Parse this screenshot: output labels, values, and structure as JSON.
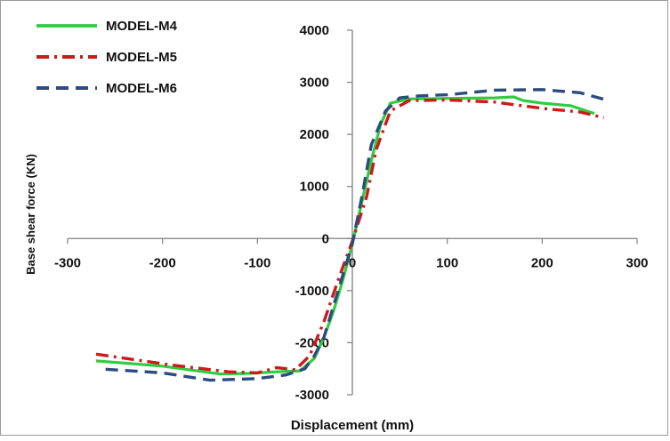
{
  "chart_data": {
    "type": "line",
    "title": "",
    "xlabel": "Displacement  (mm)",
    "ylabel": "Base shear force (KN)",
    "xlim": [
      -300,
      300
    ],
    "ylim": [
      -3000,
      4000
    ],
    "x_ticks": [
      -300,
      -200,
      -100,
      0,
      100,
      200,
      300
    ],
    "y_ticks": [
      -3000,
      -2000,
      -1000,
      0,
      1000,
      2000,
      3000,
      4000
    ],
    "x_tick_labels": [
      "-300",
      "-200",
      "-100",
      "0",
      "100",
      "200",
      "300"
    ],
    "y_tick_labels": [
      "-3000",
      "-2000",
      "-1000",
      "0",
      "1000",
      "2000",
      "3000",
      "4000"
    ],
    "grid": false,
    "legend_position": "top-left",
    "series": [
      {
        "name": "MODEL-M4",
        "color": "#2ecc40",
        "style": "solid",
        "x": [
          -270,
          -200,
          -140,
          -110,
          -80,
          -55,
          -40,
          -30,
          -20,
          -10,
          0,
          10,
          20,
          30,
          40,
          60,
          100,
          150,
          170,
          180,
          200,
          230,
          255
        ],
        "y": [
          -2350,
          -2450,
          -2600,
          -2590,
          -2560,
          -2540,
          -2300,
          -1900,
          -1400,
          -800,
          -100,
          700,
          1500,
          2200,
          2600,
          2680,
          2690,
          2700,
          2720,
          2650,
          2600,
          2550,
          2400
        ]
      },
      {
        "name": "MODEL-M5",
        "color": "#cc1a1a",
        "style": "dash-dot",
        "x": [
          -270,
          -190,
          -130,
          -100,
          -80,
          -60,
          -45,
          -30,
          -15,
          0,
          15,
          25,
          40,
          60,
          100,
          150,
          200,
          240,
          265
        ],
        "y": [
          -2220,
          -2430,
          -2560,
          -2580,
          -2480,
          -2520,
          -2250,
          -1600,
          -800,
          -50,
          800,
          1700,
          2450,
          2650,
          2660,
          2620,
          2500,
          2430,
          2320
        ]
      },
      {
        "name": "MODEL-M6",
        "color": "#2c4b80",
        "style": "dash",
        "x": [
          -260,
          -200,
          -150,
          -100,
          -70,
          -50,
          -40,
          -30,
          -15,
          0,
          10,
          20,
          35,
          50,
          70,
          100,
          150,
          200,
          240,
          270
        ],
        "y": [
          -2510,
          -2580,
          -2720,
          -2690,
          -2620,
          -2500,
          -2250,
          -1900,
          -1000,
          -100,
          800,
          1800,
          2450,
          2700,
          2740,
          2760,
          2850,
          2860,
          2800,
          2650
        ]
      }
    ]
  }
}
